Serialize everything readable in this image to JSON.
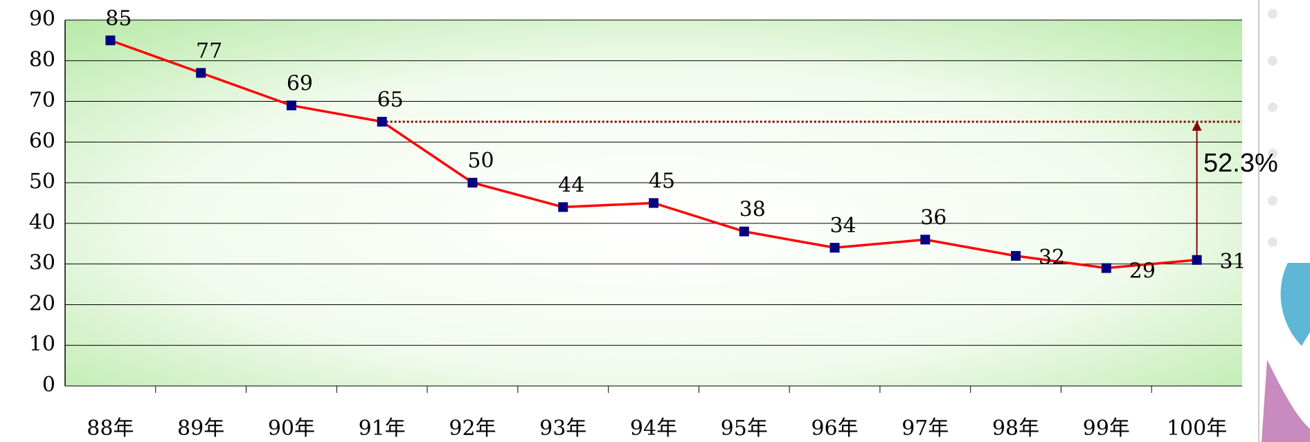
{
  "chart_data": {
    "type": "line",
    "categories": [
      "88年",
      "89年",
      "90年",
      "91年",
      "92年",
      "93年",
      "94年",
      "95年",
      "96年",
      "97年",
      "98年",
      "99年",
      "100年"
    ],
    "series": [
      {
        "color": "#ff0000",
        "marker_color": "#000080",
        "values": [
          85,
          77,
          69,
          65,
          50,
          44,
          45,
          38,
          34,
          36,
          32,
          29,
          31
        ]
      }
    ],
    "ylim": [
      0,
      90
    ],
    "yticks": [
      0,
      10,
      20,
      30,
      40,
      50,
      60,
      70,
      80,
      90
    ],
    "grid": true,
    "annotation": "52.3%"
  }
}
